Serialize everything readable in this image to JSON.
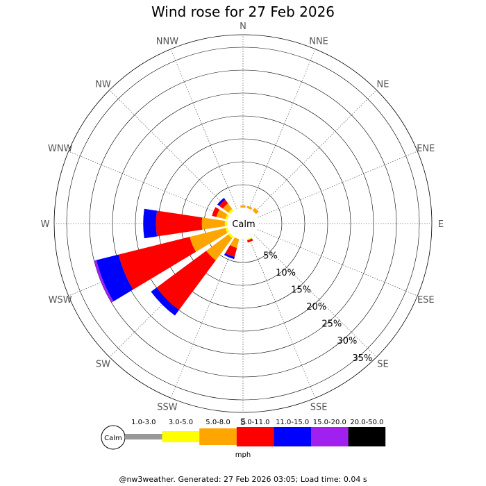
{
  "chart_data": {
    "type": "wind-rose",
    "title": "Wind rose for 27 Feb 2026",
    "directions": [
      "N",
      "NNE",
      "NE",
      "ENE",
      "E",
      "ESE",
      "SE",
      "SSE",
      "S",
      "SSW",
      "SW",
      "WSW",
      "W",
      "WNW",
      "NW",
      "NNW"
    ],
    "percent_rings": [
      "5%",
      "10%",
      "15%",
      "20%",
      "25%",
      "30%",
      "35%"
    ],
    "ring_values": [
      5,
      10,
      15,
      20,
      25,
      30,
      35
    ],
    "calm_label": "Calm",
    "unit": "mph",
    "bins": [
      {
        "label": "1.0-3.0",
        "color": "#999999"
      },
      {
        "label": "3.0-5.0",
        "color": "#ffff00"
      },
      {
        "label": "5.0-8.0",
        "color": "#ffa500"
      },
      {
        "label": "8.0-11.0",
        "color": "#ff0000"
      },
      {
        "label": "11.0-15.0",
        "color": "#0000ff"
      },
      {
        "label": "15.0-20.0",
        "color": "#a020f0"
      },
      {
        "label": "20.0-50.0",
        "color": "#000000"
      }
    ],
    "frequencies_percent": {
      "N": [
        0,
        0.0,
        0.5,
        0,
        0,
        0,
        0
      ],
      "NNE": [
        0,
        0.0,
        0.5,
        0,
        0,
        0,
        0
      ],
      "NE": [
        0,
        0.0,
        0.8,
        0,
        0,
        0,
        0
      ],
      "ENE": [
        0,
        0.0,
        0.0,
        0,
        0,
        0,
        0
      ],
      "E": [
        0,
        0.0,
        0.0,
        0,
        0,
        0,
        0
      ],
      "ESE": [
        0,
        0.0,
        0.0,
        0,
        0,
        0,
        0
      ],
      "SE": [
        0,
        0.0,
        0.0,
        0,
        0,
        0,
        0
      ],
      "SSE": [
        0,
        0.3,
        0.0,
        0.5,
        0,
        0,
        0
      ],
      "S": [
        0,
        0.0,
        0.0,
        0,
        0,
        0,
        0
      ],
      "SSW": [
        0,
        0.0,
        2.0,
        2.0,
        0.5,
        0,
        0
      ],
      "SW": [
        0,
        0.5,
        6.0,
        13.5,
        1.5,
        0,
        0
      ],
      "WSW": [
        0,
        0.5,
        8.0,
        16.0,
        5.0,
        0.5,
        0
      ],
      "W": [
        0,
        0.5,
        5.0,
        10.0,
        2.8,
        0,
        0
      ],
      "WNW": [
        0,
        0.5,
        2.0,
        1.0,
        0,
        0,
        0
      ],
      "NW": [
        0,
        0.5,
        1.5,
        1.0,
        0.5,
        0,
        0
      ],
      "NNW": [
        0,
        0.0,
        0.0,
        0,
        0,
        0,
        0
      ]
    }
  },
  "footer": "@nw3weather. Generated: 27 Feb 2026 03:05; Load time: 0.04 s"
}
